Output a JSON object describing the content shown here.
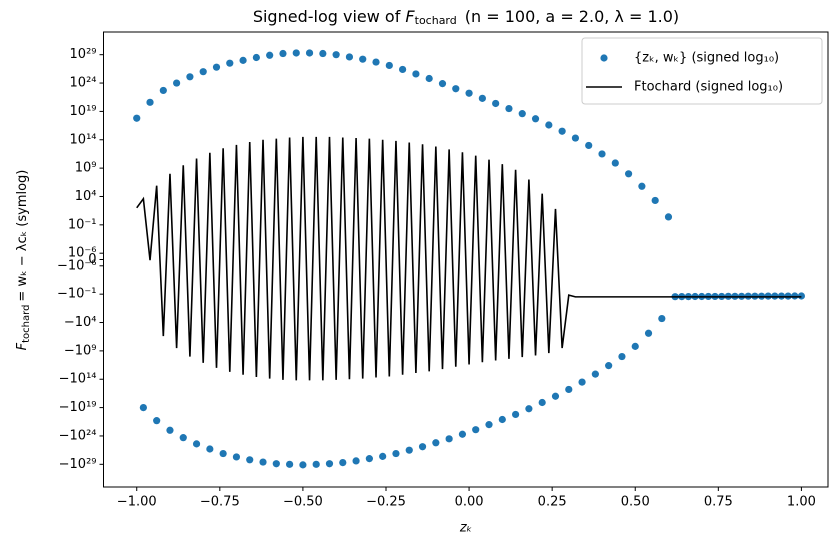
{
  "chart_data": {
    "type": "scatter_line",
    "title": {
      "text": "Signed-log view of",
      "symbol": "F",
      "subscript": "tochard",
      "params": "(n = 100, a = 2.0, λ = 1.0)"
    },
    "xlabel": "zₖ",
    "ylabel": {
      "symbol": "F",
      "subscript": "tochard",
      "rest": "= wₖ − λcₖ (symlog)"
    },
    "xlim": [
      -1.1,
      1.08
    ],
    "ylim": [
      -1e+33,
      1e+33
    ],
    "yscale": "symlog",
    "linthresh": 1e-06,
    "grid": false,
    "legend": "upper right",
    "xticks": [
      {
        "value": -1,
        "label": "−1.00"
      },
      {
        "value": -0.75,
        "label": "−0.75"
      },
      {
        "value": -0.5,
        "label": "−0.50"
      },
      {
        "value": -0.25,
        "label": "−0.25"
      },
      {
        "value": 0,
        "label": "0.00"
      },
      {
        "value": 0.25,
        "label": "0.25"
      },
      {
        "value": 0.5,
        "label": "0.50"
      },
      {
        "value": 0.75,
        "label": "0.75"
      },
      {
        "value": 1,
        "label": "1.00"
      }
    ],
    "yticks": [
      {
        "value": 1e+29,
        "label": "10²⁹"
      },
      {
        "value": 1e+24,
        "label": "10²⁴"
      },
      {
        "value": 1e+19,
        "label": "10¹⁹"
      },
      {
        "value": 100000000000000.0,
        "label": "10¹⁴"
      },
      {
        "value": 1000000000.0,
        "label": "10⁹"
      },
      {
        "value": 10000.0,
        "label": "10⁴"
      },
      {
        "value": 0.1,
        "label": "10⁻¹"
      },
      {
        "value": 1e-06,
        "label": "10⁻⁶"
      },
      0,
      {
        "value": -1e-06,
        "label": "−10⁻⁶"
      },
      {
        "value": -0.1,
        "label": "−10⁻¹"
      },
      {
        "value": -10000.0,
        "label": "−10⁴"
      },
      {
        "value": -1000000000.0,
        "label": "−10⁹"
      },
      {
        "value": -100000000000000.0,
        "label": "−10¹⁴"
      },
      {
        "value": -1e+19,
        "label": "−10¹⁹"
      },
      {
        "value": -1e+24,
        "label": "−10²⁴"
      },
      {
        "value": -1e+29,
        "label": "−10²⁹"
      }
    ],
    "series": [
      {
        "name": "{zₖ, wₖ} (signed log₁₀)",
        "kind": "scatter",
        "color": "#1f77b4",
        "x": [
          -1.0,
          -0.98,
          -0.96,
          -0.94,
          -0.92,
          -0.9,
          -0.88,
          -0.86,
          -0.84,
          -0.82,
          -0.8,
          -0.78,
          -0.76,
          -0.74,
          -0.72,
          -0.7,
          -0.68,
          -0.66,
          -0.64,
          -0.62,
          -0.6,
          -0.58,
          -0.56,
          -0.54,
          -0.52,
          -0.5,
          -0.48,
          -0.46,
          -0.44,
          -0.42,
          -0.4,
          -0.38,
          -0.36,
          -0.34,
          -0.32,
          -0.3,
          -0.28,
          -0.26,
          -0.24,
          -0.22,
          -0.2,
          -0.18,
          -0.16,
          -0.14,
          -0.12,
          -0.1,
          -0.08,
          -0.06,
          -0.04,
          -0.02,
          0.0,
          0.02,
          0.04,
          0.06,
          0.08,
          0.1,
          0.12,
          0.14,
          0.16,
          0.18,
          0.2,
          0.22,
          0.24,
          0.26,
          0.28,
          0.3,
          0.32,
          0.34,
          0.36,
          0.38,
          0.4,
          0.42,
          0.44,
          0.46,
          0.48,
          0.5,
          0.52,
          0.54,
          0.56,
          0.58,
          0.6,
          0.62,
          0.64,
          0.66,
          0.68,
          0.7,
          0.72,
          0.74,
          0.76,
          0.78,
          0.8,
          0.82,
          0.84,
          0.86,
          0.88,
          0.9,
          0.92,
          0.94,
          0.96,
          0.98,
          1.0
        ],
        "values": [
          6.3e+17,
          -1e+19,
          4e+20,
          -2e+21,
          5e+22,
          -1e+23,
          1e+24,
          -2e+24,
          1.26e+25,
          -2.5e+25,
          1e+26,
          -2e+26,
          6.3e+26,
          -1.26e+27,
          3.2e+27,
          -5e+27,
          1e+28,
          -1.6e+28,
          3.2e+28,
          -4e+28,
          7.9e+28,
          -7.9e+28,
          1.6e+29,
          -1e+29,
          2e+29,
          -1.26e+29,
          2e+29,
          -1e+29,
          1.6e+29,
          -7.9e+28,
          1e+29,
          -5e+28,
          4e+28,
          -2.5e+28,
          1.6e+28,
          -1e+28,
          5e+27,
          -4e+27,
          1.26e+27,
          -1.26e+27,
          2.5e+26,
          -3.2e+26,
          4e+25,
          -7.9e+25,
          6.3e+24,
          -1.6e+25,
          7.9e+23,
          -3.2e+24,
          1e+23,
          -5e+23,
          1.6e+22,
          -7.9e+22,
          2e+21,
          -1e+22,
          2.5e+20,
          -1.26e+21,
          3.2e+19,
          -1.6e+20,
          4e+18,
          -1.6e+19,
          5e+17,
          -1.26e+18,
          4e+16,
          -1e+17,
          3200000000000000.0,
          -6300000000000000.0,
          200000000000000.0,
          -320000000000000.0,
          10000000000000.0,
          -12600000000000.0,
          320000000000.0,
          -400000000000.0,
          7900000000.0,
          -10000000000.0,
          100000000.0,
          -160000000.0,
          630000.0,
          -790000.0,
          2000.0,
          -2000.0,
          2.5,
          -0.28,
          -0.27,
          -0.27,
          -0.26,
          -0.26,
          -0.25,
          -0.25,
          -0.25,
          -0.24,
          -0.24,
          -0.24,
          -0.23,
          -0.23,
          -0.23,
          -0.22,
          -0.22,
          -0.22,
          -0.22,
          -0.21,
          -0.21
        ]
      },
      {
        "name": "Ftochard (signed log₁₀)",
        "kind": "line",
        "color": "#000000",
        "x": [
          -1.0,
          -0.98,
          -0.96,
          -0.94,
          -0.92,
          -0.9,
          -0.88,
          -0.86,
          -0.84,
          -0.82,
          -0.8,
          -0.78,
          -0.76,
          -0.74,
          -0.72,
          -0.7,
          -0.68,
          -0.66,
          -0.64,
          -0.62,
          -0.6,
          -0.58,
          -0.56,
          -0.54,
          -0.52,
          -0.5,
          -0.48,
          -0.46,
          -0.44,
          -0.42,
          -0.4,
          -0.38,
          -0.36,
          -0.34,
          -0.32,
          -0.3,
          -0.28,
          -0.26,
          -0.24,
          -0.22,
          -0.2,
          -0.18,
          -0.16,
          -0.14,
          -0.12,
          -0.1,
          -0.08,
          -0.06,
          -0.04,
          -0.02,
          0.0,
          0.02,
          0.04,
          0.06,
          0.08,
          0.1,
          0.12,
          0.14,
          0.16,
          0.18,
          0.2,
          0.22,
          0.24,
          0.26,
          0.28,
          0.3,
          0.32,
          1.0
        ],
        "values": [
          100,
          4000.0,
          -1e-07,
          790000.0,
          -2500000.0,
          100000000.0,
          -320000000.0,
          3200000000.0,
          -10000000000.0,
          50000000000.0,
          -126000000000.0,
          500000000000.0,
          -1000000000000.0,
          3200000000000.0,
          -5000000000000.0,
          12600000000000.0,
          -16000000000000.0,
          40000000000000.0,
          -40000000000000.0,
          100000000000000.0,
          -79000000000000.0,
          160000000000000.0,
          -126000000000000.0,
          250000000000000.0,
          -160000000000000.0,
          320000000000000.0,
          -160000000000000.0,
          320000000000000.0,
          -160000000000000.0,
          320000000000000.0,
          -126000000000000.0,
          250000000000000.0,
          -100000000000000.0,
          200000000000000.0,
          -79000000000000.0,
          160000000000000.0,
          -50000000000000.0,
          100000000000000.0,
          -32000000000000.0,
          63000000000000.0,
          -16000000000000.0,
          32000000000000.0,
          -7900000000000.0,
          16000000000000.0,
          -4000000000000.0,
          6300000000000.0,
          -1600000000000.0,
          2000000000000.0,
          -630000000000.0,
          630000000000.0,
          -250000000000.0,
          160000000000.0,
          -100000000000.0,
          32000000000.0,
          -50000000000.0,
          5000000000.0,
          -25000000000.0,
          500000000.0,
          -12600000000.0,
          10000000.0,
          -6300000000.0,
          32000.0,
          -2500000000.0,
          63,
          -320000000.0,
          -0.15,
          -0.3,
          -0.3
        ]
      }
    ]
  }
}
